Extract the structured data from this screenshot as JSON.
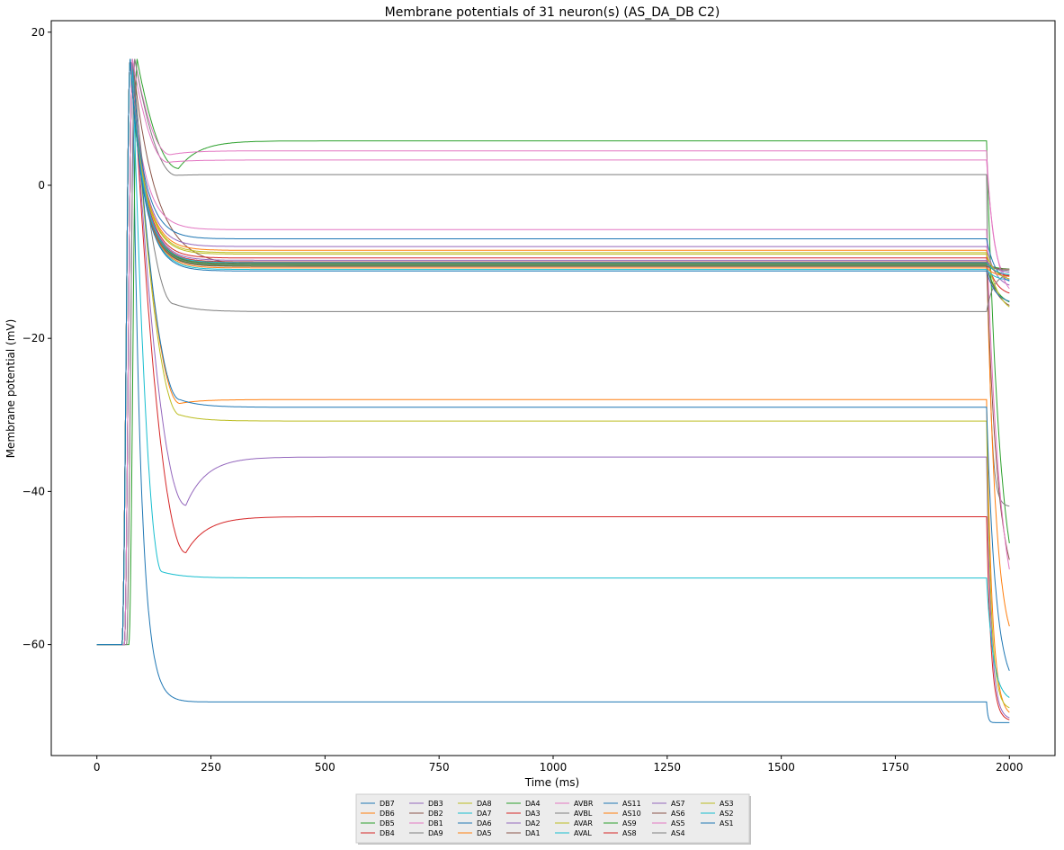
{
  "chart_data": {
    "type": "line",
    "title": "Membrane potentials of 31 neuron(s) (AS_DA_DB C2)",
    "xlabel": "Time (ms)",
    "ylabel": "Membrane potential (mV)",
    "xlim": [
      -100,
      2100
    ],
    "ylim": [
      -74.5,
      21.5
    ],
    "xticks": [
      0,
      250,
      500,
      750,
      1000,
      1250,
      1500,
      1750,
      2000
    ],
    "yticks": [
      -60,
      -40,
      -20,
      0,
      20
    ],
    "grid": false,
    "legend": "bottom-center, outside, 8 columns",
    "series": [
      {
        "name": "DB7",
        "color": "#1f77b4",
        "steady": -67.5,
        "onset": 60,
        "decay": 18,
        "dip": 0,
        "end": -70.2,
        "end_tau": 3
      },
      {
        "name": "DB6",
        "color": "#ff7f0e",
        "steady": -28.0,
        "onset": 60,
        "decay": 40,
        "dip": -28.5,
        "end": -69.5,
        "end_tau": 12
      },
      {
        "name": "DB5",
        "color": "#2ca02c",
        "steady": 5.8,
        "onset": 70,
        "decay": 35,
        "dip": 2.2,
        "end": -59.0,
        "end_tau": 30
      },
      {
        "name": "DB4",
        "color": "#d62728",
        "steady": -43.3,
        "onset": 60,
        "decay": 45,
        "dip": -48.0,
        "end": -70.0,
        "end_tau": 10
      },
      {
        "name": "DB3",
        "color": "#9467bd",
        "steady": -35.5,
        "onset": 60,
        "decay": 45,
        "dip": -41.8,
        "end": -69.8,
        "end_tau": 10
      },
      {
        "name": "DB2",
        "color": "#8c564b",
        "steady": -10.5,
        "onset": 60,
        "decay": 50,
        "dip": 0,
        "end": -16.5,
        "end_tau": 25
      },
      {
        "name": "DB1",
        "color": "#e377c2",
        "steady": 4.5,
        "onset": 65,
        "decay": 30,
        "dip": 4.0,
        "end": -13.0,
        "end_tau": 15
      },
      {
        "name": "DA9",
        "color": "#7f7f7f",
        "steady": 1.4,
        "onset": 65,
        "decay": 35,
        "dip": 1.3,
        "end": -42.0,
        "end_tau": 8
      },
      {
        "name": "DA8",
        "color": "#bcbd22",
        "steady": -30.8,
        "onset": 60,
        "decay": 40,
        "dip": -30.0,
        "end": -68.5,
        "end_tau": 10
      },
      {
        "name": "DA7",
        "color": "#17becf",
        "steady": -51.3,
        "onset": 60,
        "decay": 25,
        "dip": -50.5,
        "end": -67.5,
        "end_tau": 15
      },
      {
        "name": "DA6",
        "color": "#1f77b4",
        "steady": -29.0,
        "onset": 60,
        "decay": 40,
        "dip": -28.0,
        "end": -66.5,
        "end_tau": 20
      },
      {
        "name": "DA5",
        "color": "#ff7f0e",
        "steady": -8.5,
        "onset": 55,
        "decay": 30,
        "dip": 0,
        "end": -62.0,
        "end_tau": 20
      },
      {
        "name": "DA4",
        "color": "#2ca02c",
        "steady": -10.5,
        "onset": 55,
        "decay": 30,
        "dip": 0,
        "end": -16.0,
        "end_tau": 25
      },
      {
        "name": "DA3",
        "color": "#d62728",
        "steady": -9.5,
        "onset": 55,
        "decay": 30,
        "dip": 0,
        "end": -14.5,
        "end_tau": 20
      },
      {
        "name": "DA2",
        "color": "#9467bd",
        "steady": -8.0,
        "onset": 55,
        "decay": 30,
        "dip": 0,
        "end": -13.5,
        "end_tau": 20
      },
      {
        "name": "DA1",
        "color": "#8c564b",
        "steady": -10.2,
        "onset": 55,
        "decay": 30,
        "dip": 0,
        "end": -55.0,
        "end_tau": 25
      },
      {
        "name": "AVBR",
        "color": "#e377c2",
        "steady": -5.8,
        "onset": 55,
        "decay": 30,
        "dip": 0,
        "end": -60.5,
        "end_tau": 30
      },
      {
        "name": "AVBL",
        "color": "#7f7f7f",
        "steady": -16.5,
        "onset": 60,
        "decay": 35,
        "dip": -15.5,
        "end": -11.5,
        "end_tau": 15
      },
      {
        "name": "AVAR",
        "color": "#bcbd22",
        "steady": -8.8,
        "onset": 55,
        "decay": 30,
        "dip": 0,
        "end": -17.0,
        "end_tau": 25
      },
      {
        "name": "AVAL",
        "color": "#17becf",
        "steady": -11.0,
        "onset": 55,
        "decay": 30,
        "dip": 0,
        "end": -12.5,
        "end_tau": 20
      },
      {
        "name": "AS11",
        "color": "#1f77b4",
        "steady": -7.0,
        "onset": 55,
        "decay": 30,
        "dip": 0,
        "end": -13.0,
        "end_tau": 20
      },
      {
        "name": "AS10",
        "color": "#ff7f0e",
        "steady": -10.8,
        "onset": 55,
        "decay": 30,
        "dip": 0,
        "end": -12.0,
        "end_tau": 20
      },
      {
        "name": "AS9",
        "color": "#2ca02c",
        "steady": -10.3,
        "onset": 55,
        "decay": 30,
        "dip": 0,
        "end": -11.0,
        "end_tau": 20
      },
      {
        "name": "AS8",
        "color": "#d62728",
        "steady": -10.0,
        "onset": 55,
        "decay": 30,
        "dip": 0,
        "end": -12.0,
        "end_tau": 20
      },
      {
        "name": "AS7",
        "color": "#9467bd",
        "steady": -9.8,
        "onset": 55,
        "decay": 30,
        "dip": 0,
        "end": -11.5,
        "end_tau": 20
      },
      {
        "name": "AS6",
        "color": "#8c564b",
        "steady": -10.6,
        "onset": 55,
        "decay": 30,
        "dip": 0,
        "end": -11.0,
        "end_tau": 20
      },
      {
        "name": "AS5",
        "color": "#e377c2",
        "steady": 3.3,
        "onset": 60,
        "decay": 30,
        "dip": 3.0,
        "end": -15.0,
        "end_tau": 20
      },
      {
        "name": "AS4",
        "color": "#7f7f7f",
        "steady": -10.4,
        "onset": 55,
        "decay": 30,
        "dip": 0,
        "end": -11.2,
        "end_tau": 20
      },
      {
        "name": "AS3",
        "color": "#bcbd22",
        "steady": -9.0,
        "onset": 55,
        "decay": 30,
        "dip": 0,
        "end": -12.5,
        "end_tau": 20
      },
      {
        "name": "AS2",
        "color": "#17becf",
        "steady": -10.1,
        "onset": 55,
        "decay": 30,
        "dip": 0,
        "end": -11.8,
        "end_tau": 20
      },
      {
        "name": "AS1",
        "color": "#1f77b4",
        "steady": -11.2,
        "onset": 55,
        "decay": 30,
        "dip": 0,
        "end": -15.5,
        "end_tau": 20
      }
    ]
  }
}
